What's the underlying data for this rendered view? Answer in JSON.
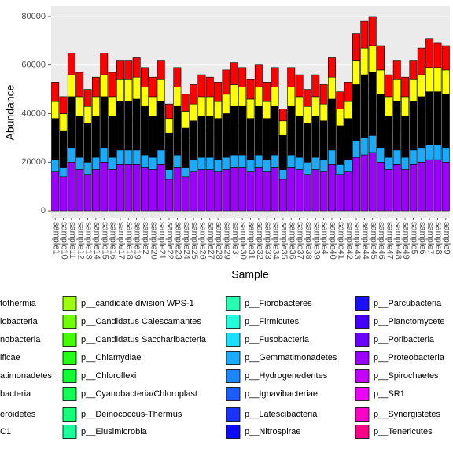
{
  "chart_data": {
    "type": "stacked_bar",
    "x_label": "Sample",
    "y_label": "Abundance",
    "categories": [
      "sample1",
      "sample10",
      "sample11",
      "sample12",
      "sample13",
      "sample14",
      "sample15",
      "sample16",
      "sample17",
      "sample18",
      "sample19",
      "sample2",
      "sample20",
      "sample21",
      "sample22",
      "sample23",
      "sample24",
      "sample25",
      "sample26",
      "sample27",
      "sample28",
      "sample29",
      "sample3",
      "sample30",
      "sample31",
      "sample32",
      "sample33",
      "sample34",
      "sample35",
      "sample36",
      "sample37",
      "sample38",
      "sample39",
      "sample4",
      "sample40",
      "sample41",
      "sample42",
      "sample43",
      "sample44",
      "sample45",
      "sample46",
      "sample47",
      "sample48",
      "sample49",
      "sample5",
      "sample6",
      "sample7",
      "sample8",
      "sample9"
    ],
    "ylim": [
      -2900,
      84200
    ],
    "yticks": [
      0,
      20000,
      40000,
      60000,
      80000
    ],
    "grid": true,
    "series": [
      {
        "name": "tothermia"
      },
      {
        "name": "lobacteria",
        "color": "#ff0000",
        "values": [
          8000,
          7000,
          9000,
          10000,
          7000,
          8000,
          9000,
          10000,
          8000,
          8000,
          8000,
          8000,
          8000,
          8000,
          6000,
          8000,
          7000,
          8000,
          9000,
          8000,
          8000,
          10000,
          9000,
          8000,
          8000,
          9000,
          8000,
          8000,
          5000,
          8000,
          9000,
          7000,
          9000,
          8000,
          8000,
          7000,
          8000,
          11000,
          11000,
          12000,
          10000,
          9000,
          8000,
          8000,
          8000,
          11000,
          12000,
          10000,
          10000
        ]
      },
      {
        "name": "nobacteria",
        "color": "#ffff00",
        "values": [
          7000,
          7000,
          9000,
          8000,
          7000,
          8000,
          9000,
          8000,
          9000,
          9000,
          9000,
          8000,
          8000,
          9000,
          6000,
          8000,
          7000,
          7000,
          8000,
          8000,
          7000,
          8000,
          9000,
          8000,
          8000,
          8000,
          7000,
          8000,
          6000,
          8000,
          8000,
          7000,
          8000,
          7000,
          9000,
          7000,
          7000,
          10000,
          11000,
          11000,
          10000,
          8000,
          9000,
          8000,
          9000,
          9000,
          10000,
          10000,
          10000
        ]
      },
      {
        "name": "ificae",
        "color": "#000000",
        "values": [
          3000,
          3000,
          4000,
          3000,
          3000,
          3000,
          4000,
          3000,
          4000,
          4000,
          4000,
          4000,
          3000,
          4000,
          3000,
          4000,
          3000,
          3000,
          3000,
          3000,
          3000,
          3000,
          4000,
          4000,
          3000,
          4000,
          3000,
          4000,
          3000,
          4000,
          3000,
          3000,
          3000,
          3000,
          4000,
          3000,
          3000,
          4000,
          5000,
          5000,
          4000,
          3000,
          4000,
          3000,
          4000,
          4000,
          4000,
          4000,
          4000
        ]
      },
      {
        "name": "atimonadetes"
      },
      {
        "name": "bacteria",
        "color": "#000000",
        "values": [
          3000,
          3000,
          4000,
          3000,
          3000,
          3000,
          4000,
          3000,
          4000,
          4000,
          4000,
          4000,
          3000,
          4000,
          3000,
          4000,
          3000,
          3000,
          3000,
          3000,
          3000,
          3000,
          4000,
          4000,
          3000,
          4000,
          3000,
          4000,
          3000,
          4000,
          3000,
          3000,
          3000,
          3000,
          4000,
          3000,
          3000,
          4000,
          5000,
          5000,
          4000,
          3000,
          4000,
          3000,
          4000,
          4000,
          4000,
          4000,
          4000
        ]
      },
      {
        "name": "eroidetes",
        "color": "#000000",
        "values": [
          11000,
          9000,
          13000,
          11000,
          10000,
          11000,
          13000,
          11000,
          12000,
          12000,
          13000,
          12000,
          11000,
          12000,
          9000,
          12000,
          10000,
          10000,
          11000,
          11000,
          11000,
          12000,
          12000,
          12000,
          11000,
          12000,
          11000,
          12000,
          8000,
          12000,
          11000,
          10000,
          11000,
          10000,
          13000,
          10000,
          11000,
          15000,
          16000,
          16000,
          14000,
          11000,
          12000,
          11000,
          12000,
          13000,
          14000,
          14000,
          14000
        ]
      },
      {
        "name": "C1"
      },
      {
        "name": "p__candidate division WPS-1",
        "color": "#9bff0f"
      },
      {
        "name": "p__Candidatus Calescamantes",
        "color": "#70ff05"
      },
      {
        "name": "p__Candidatus Saccharibacteria",
        "color": "#44ff00"
      },
      {
        "name": "p__Chlamydiae",
        "color": "#22ff14"
      },
      {
        "name": "p__Chloroflexi",
        "color": "#10ff33"
      },
      {
        "name": "p__Cyanobacteria/Chloroplast",
        "color": "#10ff55"
      },
      {
        "name": "p__Deinococcus-Thermus",
        "color": "#14ff77"
      },
      {
        "name": "p__Elusimicrobia",
        "color": "#1aff99"
      },
      {
        "name": "p__Fibrobacteres",
        "color": "#26ffb3"
      },
      {
        "name": "p__Firmicutes",
        "color": "#22ffdd"
      },
      {
        "name": "p__Fusobacteria",
        "color": "#1adfff"
      },
      {
        "name": "p__Gemmatimonadetes",
        "color": "#1aabff",
        "values": [
          5000,
          4000,
          6000,
          5000,
          5000,
          5000,
          6000,
          5000,
          6000,
          6000,
          6000,
          5000,
          5000,
          6000,
          4000,
          5000,
          4000,
          5000,
          5000,
          5000,
          5000,
          5000,
          5000,
          5000,
          5000,
          5000,
          5000,
          5000,
          4000,
          5000,
          5000,
          5000,
          5000,
          5000,
          6000,
          4000,
          5000,
          7000,
          7000,
          7000,
          6000,
          5000,
          6000,
          5000,
          6000,
          6000,
          6000,
          6000,
          6000
        ]
      },
      {
        "name": "p__Hydrogenedentes",
        "color": "#1a86ff"
      },
      {
        "name": "p__Ignavibacteriae",
        "color": "#1a5cff"
      },
      {
        "name": "p__Latescibacteria",
        "color": "#1a33ff"
      },
      {
        "name": "p__Nitrospirae",
        "color": "#0a0aff"
      },
      {
        "name": "p__Parcubacteria",
        "color": "#1a10ff"
      },
      {
        "name": "p__Planctomycete",
        "color": "#4400ff"
      },
      {
        "name": "p__Poribacteria",
        "color": "#6a00ff"
      },
      {
        "name": "p__Proteobacteria",
        "color": "#9b00ff",
        "values": [
          16000,
          14000,
          20000,
          17000,
          15000,
          17000,
          20000,
          17000,
          19000,
          19000,
          19000,
          18000,
          17000,
          19000,
          13000,
          18000,
          14000,
          16000,
          17000,
          17000,
          16000,
          17000,
          18000,
          18000,
          16000,
          18000,
          16000,
          18000,
          13000,
          18000,
          17000,
          15000,
          17000,
          16000,
          19000,
          15000,
          16000,
          22000,
          23000,
          24000,
          20000,
          17000,
          19000,
          17000,
          19000,
          20000,
          21000,
          21000,
          20000
        ]
      },
      {
        "name": "p__Spirochaetes",
        "color": "#c400ff"
      },
      {
        "name": "p__SR1",
        "color": "#ee00ff"
      },
      {
        "name": "p__Synergistetes",
        "color": "#ff00c8"
      },
      {
        "name": "p__Tenericutes",
        "color": "#ff0088"
      }
    ]
  }
}
